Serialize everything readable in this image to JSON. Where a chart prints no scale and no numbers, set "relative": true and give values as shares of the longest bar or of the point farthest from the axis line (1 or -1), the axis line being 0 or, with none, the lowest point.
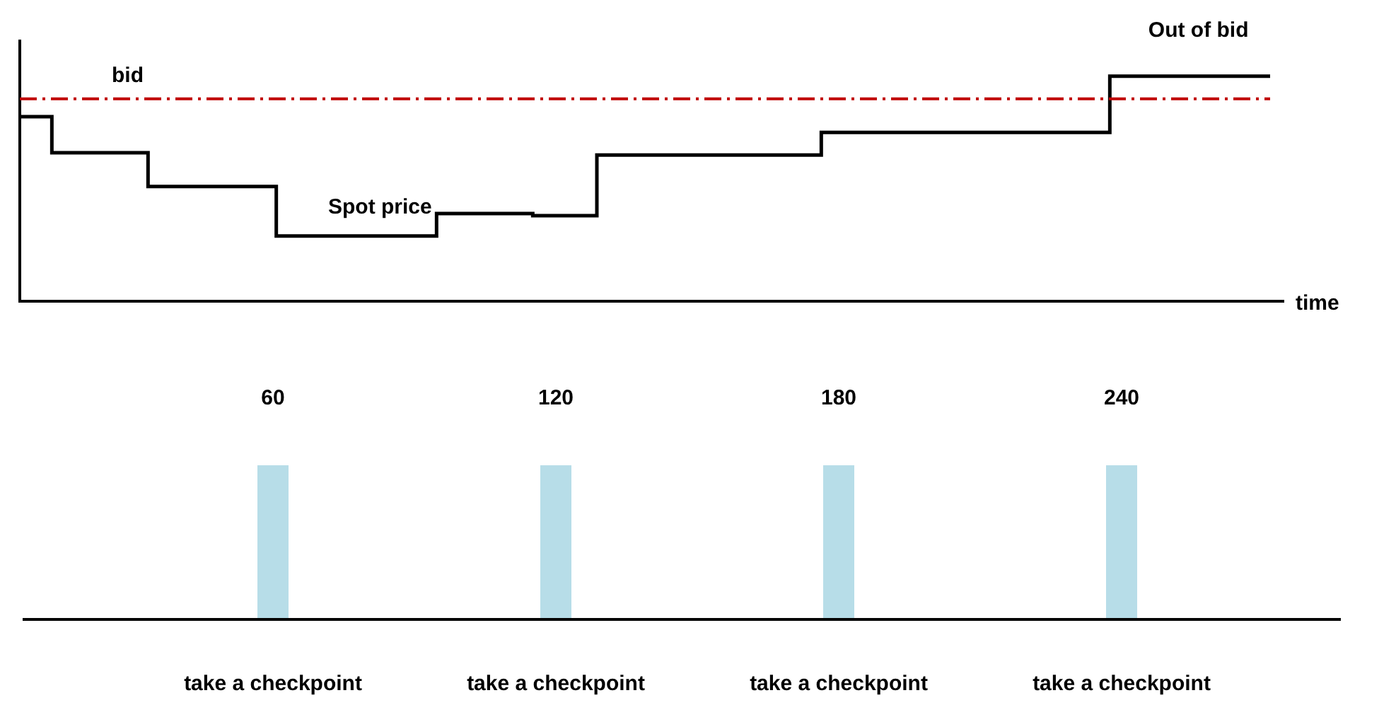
{
  "chart_data": [
    {
      "type": "step",
      "relative": true,
      "xlabel": "time",
      "categories": [
        null,
        null,
        null,
        null,
        null,
        null,
        null,
        null,
        null,
        null,
        null,
        null,
        null,
        null,
        null,
        null,
        null,
        null,
        null,
        null,
        null,
        null,
        null,
        null,
        null,
        null,
        null,
        null,
        null,
        null,
        null,
        null,
        null,
        null,
        null,
        null,
        null,
        null,
        null,
        null
      ],
      "series": [
        {
          "color": "#000000",
          "values": [
            0.82,
            0.82,
            0.66,
            0.66,
            0.66,
            0.51,
            0.51,
            0.51,
            0.51,
            0.29,
            0.29,
            0.29,
            0.29,
            0.29,
            0.39,
            0.39,
            0.39,
            0.38,
            0.38,
            0.65,
            0.65,
            0.65,
            0.65,
            0.65,
            0.65,
            0.65,
            0.75,
            0.75,
            0.75,
            0.75,
            0.75,
            0.75,
            0.75,
            0.75,
            0.75,
            1,
            1,
            1,
            1,
            1
          ]
        }
      ],
      "ref_lines": [
        {
          "axis": "y",
          "value": 0.9,
          "label": "bid",
          "color": "#c00000",
          "line_style": "dashed"
        }
      ],
      "annotations": [
        "Spot price",
        "Out of bid"
      ],
      "tick_labels": false,
      "legend": false
    },
    {
      "type": "bar",
      "relative": true,
      "categories": [
        "60",
        "120",
        "180",
        "240"
      ],
      "values": [
        1,
        1,
        1,
        1
      ],
      "color": "#b7dde8",
      "annotations": [
        "take a checkpoint",
        "take a checkpoint",
        "take a checkpoint",
        "take a checkpoint"
      ],
      "tick_labels": "x",
      "legend": false
    }
  ]
}
